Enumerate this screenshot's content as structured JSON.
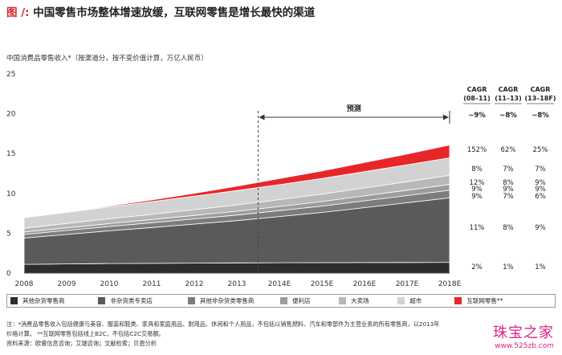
{
  "header": {
    "label": "图 /:",
    "title": "中国零售市场整体增速放缓，互联网零售是增长最快的渠道"
  },
  "chart_data": {
    "type": "area",
    "stacked": true,
    "subtitle": "中国消费品零售收入*（按渠道分，按不变价值计算，万亿人民币）",
    "x": [
      "2008",
      "2009",
      "2010",
      "2011",
      "2012",
      "2013",
      "2014E",
      "2015E",
      "2016E",
      "2017E",
      "2018E"
    ],
    "ylim": [
      0,
      25
    ],
    "yticks": [
      "0",
      "5",
      "10",
      "15",
      "20",
      "25"
    ],
    "forecast_label": "预测",
    "forecast_from": "2014E",
    "series": [
      {
        "name": "其他杂货零售商",
        "color": "#2d2d2d",
        "values": [
          1.1,
          1.15,
          1.2,
          1.22,
          1.25,
          1.28,
          1.3,
          1.31,
          1.32,
          1.33,
          1.35
        ]
      },
      {
        "name": "非杂货类专卖店",
        "color": "#5a5a5a",
        "values": [
          3.3,
          3.7,
          4.1,
          4.5,
          4.9,
          5.3,
          5.8,
          6.3,
          6.9,
          7.5,
          8.1
        ]
      },
      {
        "name": "其他非杂货类零售商",
        "color": "#7c7c7c",
        "values": [
          0.45,
          0.5,
          0.55,
          0.6,
          0.65,
          0.7,
          0.74,
          0.8,
          0.85,
          0.9,
          0.95
        ]
      },
      {
        "name": "便利店",
        "color": "#9c9c9c",
        "values": [
          0.3,
          0.33,
          0.36,
          0.4,
          0.44,
          0.48,
          0.52,
          0.57,
          0.62,
          0.67,
          0.72
        ]
      },
      {
        "name": "大卖场",
        "color": "#b8b8b8",
        "values": [
          0.5,
          0.55,
          0.6,
          0.65,
          0.72,
          0.8,
          0.86,
          0.93,
          1.0,
          1.07,
          1.15
        ]
      },
      {
        "name": "超市",
        "color": "#d2d2d2",
        "values": [
          1.3,
          1.4,
          1.5,
          1.6,
          1.7,
          1.8,
          1.88,
          1.96,
          2.04,
          2.12,
          2.2
        ]
      },
      {
        "name": "互联网零售**",
        "color": "#e8262a",
        "values": [
          0.02,
          0.05,
          0.1,
          0.2,
          0.35,
          0.55,
          0.75,
          0.95,
          1.15,
          1.35,
          1.6
        ]
      }
    ],
    "right_labels": {
      "headers": [
        {
          "line1": "CAGR",
          "line2": "(08–11)",
          "value": "~9%"
        },
        {
          "line1": "CAGR",
          "line2": "(11–13)",
          "value": "~8%"
        },
        {
          "line1": "CAGR",
          "line2": "(13–18F)",
          "value": "~8%"
        }
      ],
      "rows": [
        [
          "152%",
          "62%",
          "25%"
        ],
        [
          "8%",
          "7%",
          "7%"
        ],
        [
          "12%",
          "8%",
          "9%"
        ],
        [
          "9%",
          "9%",
          "9%"
        ],
        [
          "9%",
          "7%",
          "6%"
        ],
        [
          "11%",
          "8%",
          "9%"
        ],
        [
          "2%",
          "1%",
          "1%"
        ]
      ]
    }
  },
  "notes": [
    "注：*消费品零售收入包括健康与美容、服装和鞋类、家具和家庭用品、耐用品、休闲和个人用品，不包括以销售燃料、汽车和零部件为主营业务的所有零售商，以2013年",
    "价格计算。 **互联网零售包括线上B2C，不包括C2C交易额。",
    "资料来源：欧睿信息咨询；艾瑞咨询；文献检索；贝恩分析"
  ],
  "watermark": {
    "text": "珠宝之家",
    "url": "www.525zb.com"
  }
}
